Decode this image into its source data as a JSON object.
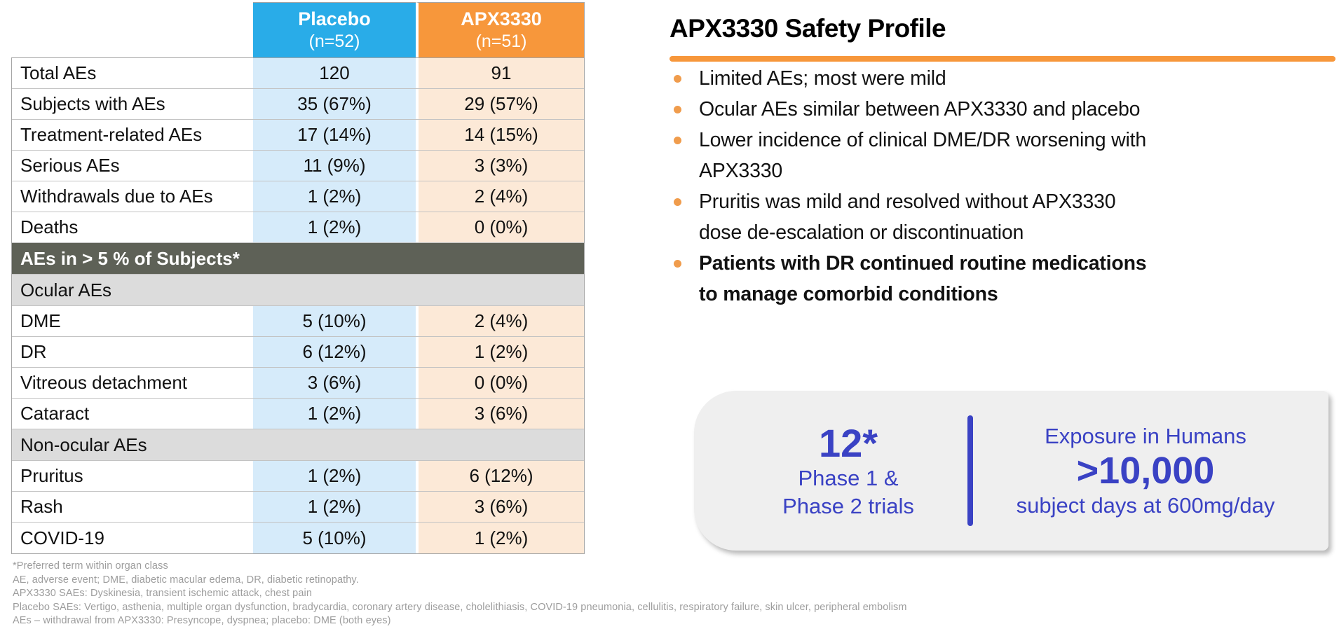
{
  "table": {
    "columns": [
      {
        "name": "",
        "n": ""
      },
      {
        "name": "Placebo",
        "n": "(n=52)"
      },
      {
        "name": "APX3330",
        "n": "(n=51)"
      }
    ],
    "rows": [
      {
        "type": "data",
        "label": "Total AEs",
        "placebo": "120",
        "apx3330": "91"
      },
      {
        "type": "data",
        "label": "Subjects with AEs",
        "placebo": "35 (67%)",
        "apx3330": "29 (57%)"
      },
      {
        "type": "data",
        "label": "Treatment-related AEs",
        "placebo": "17 (14%)",
        "apx3330": "14 (15%)"
      },
      {
        "type": "data",
        "label": "Serious AEs",
        "placebo": "11 (9%)",
        "apx3330": "3 (3%)"
      },
      {
        "type": "data",
        "label": "Withdrawals due to AEs",
        "placebo": "1 (2%)",
        "apx3330": "2 (4%)"
      },
      {
        "type": "data",
        "label": "Deaths",
        "placebo": "1 (2%)",
        "apx3330": "0 (0%)"
      },
      {
        "type": "section",
        "label": "AEs in > 5 % of Subjects*"
      },
      {
        "type": "subsection",
        "label": "Ocular AEs"
      },
      {
        "type": "data",
        "label": "DME",
        "placebo": "5 (10%)",
        "apx3330": "2 (4%)"
      },
      {
        "type": "data",
        "label": "DR",
        "placebo": "6 (12%)",
        "apx3330": "1 (2%)"
      },
      {
        "type": "data",
        "label": "Vitreous detachment",
        "placebo": "3 (6%)",
        "apx3330": "0 (0%)"
      },
      {
        "type": "data",
        "label": "Cataract",
        "placebo": "1 (2%)",
        "apx3330": "3 (6%)"
      },
      {
        "type": "subsection",
        "label": "Non-ocular AEs"
      },
      {
        "type": "data",
        "label": "Pruritus",
        "placebo": "1 (2%)",
        "apx3330": "6 (12%)"
      },
      {
        "type": "data",
        "label": "Rash",
        "placebo": "1 (2%)",
        "apx3330": "3 (6%)"
      },
      {
        "type": "data",
        "label": "COVID-19",
        "placebo": "5 (10%)",
        "apx3330": "1 (2%)"
      }
    ]
  },
  "footnotes": [
    "*Preferred term within organ class",
    "AE, adverse event;  DME, diabetic macular edema, DR, diabetic retinopathy.",
    "APX3330 SAEs: Dyskinesia, transient ischemic attack, chest pain",
    "Placebo SAEs: Vertigo, asthenia, multiple organ dysfunction, bradycardia, coronary artery disease, cholelithiasis,  COVID-19 pneumonia,  cellulitis,  respiratory failure, skin ulcer, peripheral embolism",
    "AEs – withdrawal  from APX3330:  Presyncope, dyspnea;  placebo:  DME (both eyes)"
  ],
  "right_panel": {
    "title": "APX3330 Safety Profile",
    "bullets": [
      {
        "bold": false,
        "lines": [
          "Limited AEs; most were mild"
        ]
      },
      {
        "bold": false,
        "lines": [
          "Ocular AEs similar between APX3330 and placebo"
        ]
      },
      {
        "bold": false,
        "lines": [
          "Lower incidence of clinical DME/DR worsening with",
          "APX3330"
        ]
      },
      {
        "bold": false,
        "lines": [
          "Pruritis was mild and resolved without APX3330",
          "dose de-escalation or discontinuation"
        ]
      },
      {
        "bold": true,
        "lines": [
          "Patients with DR continued routine medications",
          "to manage comorbid conditions"
        ]
      }
    ],
    "callout": {
      "trials_stat": "12*",
      "trials_label_line1": "Phase 1 &",
      "trials_label_line2": "Phase 2 trials",
      "exposure_title": "Exposure in Humans",
      "exposure_stat": ">10,000",
      "exposure_label": "subject days at 600mg/day"
    }
  },
  "colors": {
    "placebo_header": "#29ACE8",
    "placebo_cell": "#D6EBFA",
    "apx3330_header": "#F7973B",
    "apx3330_cell": "#FCE9D7",
    "section_band": "#5E6157",
    "subsection_band": "#DCDCDC",
    "accent_orange": "#F7973B",
    "bullet_orange": "#F09C4C",
    "callout_blue": "#3A42C4",
    "callout_bg": "#EFEFEF",
    "footnote_gray": "#9D9D9D"
  }
}
